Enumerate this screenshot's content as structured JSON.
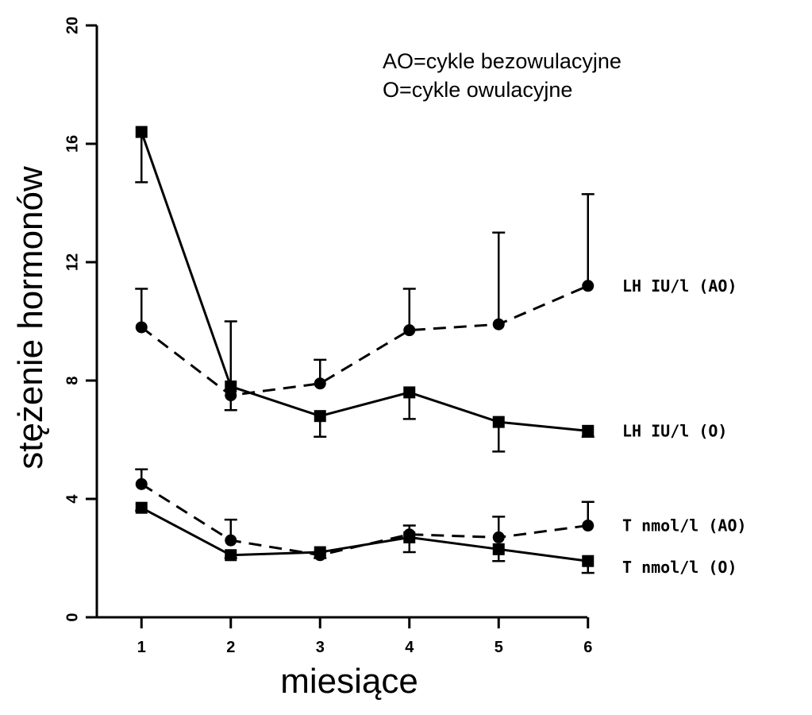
{
  "chart_data": {
    "type": "line",
    "xlabel": "miesiące",
    "ylabel": "stężenie hormonów",
    "x": [
      1,
      2,
      3,
      4,
      5,
      6
    ],
    "xlim": [
      0.5,
      6.5
    ],
    "ylim": [
      0,
      20
    ],
    "yticks": [
      0,
      4,
      8,
      12,
      16,
      20
    ],
    "xticks": [
      1,
      2,
      3,
      4,
      5,
      6
    ],
    "grid": false,
    "legend": {
      "placement": "top-right",
      "entries": [
        "AO=cykle bezowulacyjne",
        "O=cykle owulacyjne"
      ]
    },
    "series": [
      {
        "name": "LH IU/l (AO)",
        "line_style": "dashed",
        "marker": "circle",
        "values": [
          9.8,
          7.5,
          7.9,
          9.7,
          9.9,
          11.2
        ],
        "error_upper": [
          11.1,
          10.0,
          8.7,
          11.1,
          13.0,
          14.3
        ]
      },
      {
        "name": "LH IU/l (O)",
        "line_style": "solid",
        "marker": "square",
        "values": [
          16.4,
          7.8,
          6.8,
          7.6,
          6.6,
          6.3
        ],
        "error_lower": [
          14.7,
          7.0,
          6.1,
          6.7,
          5.6,
          6.1
        ]
      },
      {
        "name": "T nmol/l (AO)",
        "line_style": "dashed",
        "marker": "circle",
        "values": [
          4.5,
          2.6,
          2.1,
          2.8,
          2.7,
          3.1
        ],
        "error_upper": [
          5.0,
          3.3,
          2.2,
          3.1,
          3.4,
          3.9
        ]
      },
      {
        "name": "T nmol/l (O)",
        "line_style": "solid",
        "marker": "square",
        "values": [
          3.7,
          2.1,
          2.2,
          2.7,
          2.3,
          1.9
        ],
        "error_lower": [
          3.6,
          2.0,
          2.0,
          2.2,
          1.9,
          1.5
        ]
      }
    ]
  }
}
